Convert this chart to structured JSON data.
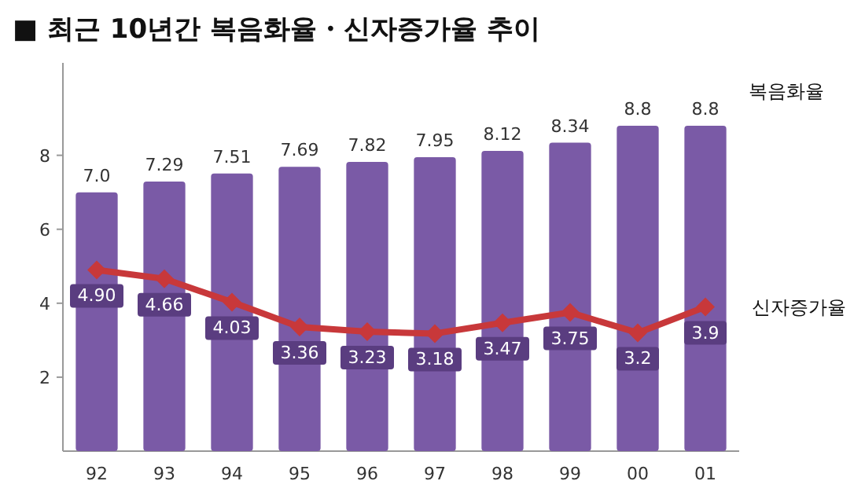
{
  "chart_data": {
    "type": "bar",
    "title": "■ 최근 10년간 복음화율・신자증가율 추이",
    "categories": [
      "92",
      "93",
      "94",
      "95",
      "96",
      "97",
      "98",
      "99",
      "00",
      "01"
    ],
    "series": [
      {
        "name": "복음화율",
        "color": "#7a5aa6",
        "values": [
          7.0,
          7.29,
          7.51,
          7.69,
          7.82,
          7.95,
          8.12,
          8.34,
          8.8,
          8.8
        ],
        "value_labels": [
          "7.0",
          "7.29",
          "7.51",
          "7.69",
          "7.82",
          "7.95",
          "8.12",
          "8.34",
          "8.8",
          "8.8"
        ]
      },
      {
        "name": "신자증가율",
        "type": "line",
        "color": "#c8383a",
        "values": [
          4.9,
          4.66,
          4.03,
          3.36,
          3.23,
          3.18,
          3.47,
          3.75,
          3.2,
          3.9
        ],
        "value_labels": [
          "4.90",
          "4.66",
          "4.03",
          "3.36",
          "3.23",
          "3.18",
          "3.47",
          "3.75",
          "3.2",
          "3.9"
        ]
      }
    ],
    "ylim": [
      0,
      10.5
    ],
    "yticks": [
      2,
      4,
      6,
      8
    ],
    "grid": false,
    "legend": false,
    "marker": "diamond",
    "line_style": "solid"
  }
}
